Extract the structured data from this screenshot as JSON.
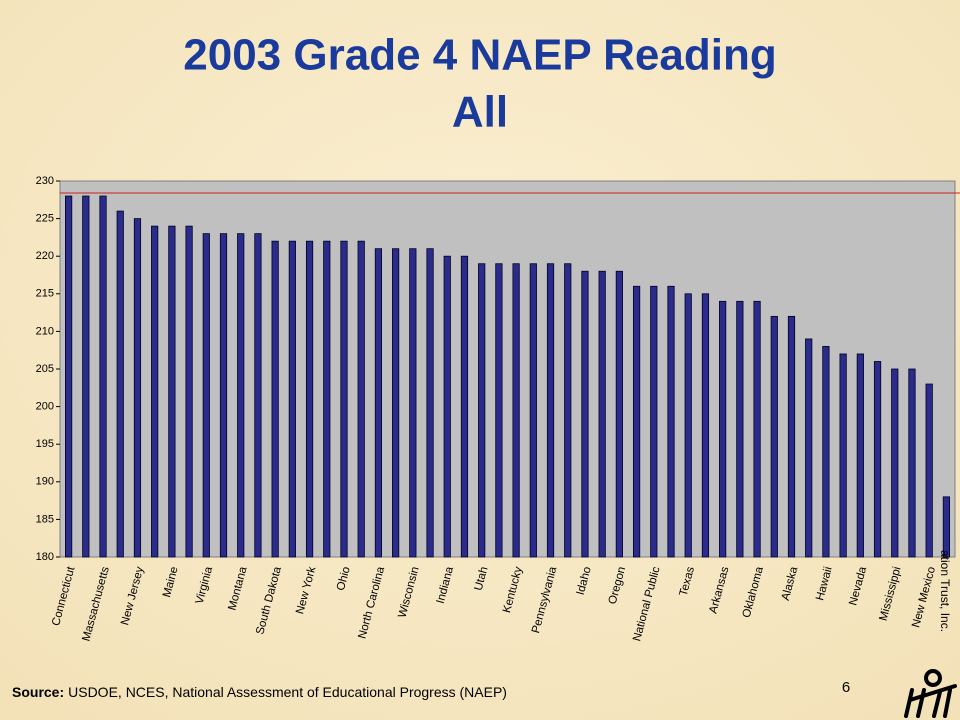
{
  "chart_data": {
    "type": "bar",
    "title": "2003 Grade 4 NAEP Reading",
    "subtitle": "All",
    "categories": [
      "Connecticut",
      null,
      "Massachusetts",
      null,
      "New Jersey",
      null,
      "Maine",
      null,
      "Virginia",
      null,
      "Montana",
      null,
      "South Dakota",
      null,
      "New York",
      null,
      "Ohio",
      null,
      "North Carolina",
      null,
      "Wisconsin",
      null,
      "Indiana",
      null,
      "Utah",
      null,
      "Kentucky",
      null,
      "Pennsylvania",
      null,
      "Idaho",
      null,
      "Oregon",
      null,
      "National Public",
      null,
      "Texas",
      null,
      "Arkansas",
      null,
      "Oklahoma",
      null,
      "Alaska",
      null,
      "Hawaii",
      null,
      "Nevada",
      null,
      "Mississippi",
      null,
      "New Mexico",
      null
    ],
    "values": [
      228,
      228,
      228,
      226,
      225,
      224,
      224,
      224,
      223,
      223,
      223,
      223,
      222,
      222,
      222,
      222,
      222,
      222,
      221,
      221,
      221,
      221,
      220,
      220,
      219,
      219,
      219,
      219,
      219,
      219,
      218,
      218,
      218,
      216,
      216,
      216,
      215,
      215,
      214,
      214,
      214,
      212,
      212,
      209,
      208,
      207,
      207,
      206,
      205,
      205,
      203,
      188
    ],
    "color": "#2b2b8c",
    "reference_line": 228.4,
    "reference_color": "#cc2020",
    "ylim": [
      180,
      230
    ],
    "yticks": [
      180,
      185,
      190,
      195,
      200,
      205,
      210,
      215,
      220,
      225,
      230
    ],
    "grid": false,
    "source_label": "Source:",
    "source": "USDOE, NCES, National Assessment of Educational Progress (NAEP)",
    "side_note": "ation Trust, Inc.",
    "page_number": "6"
  }
}
